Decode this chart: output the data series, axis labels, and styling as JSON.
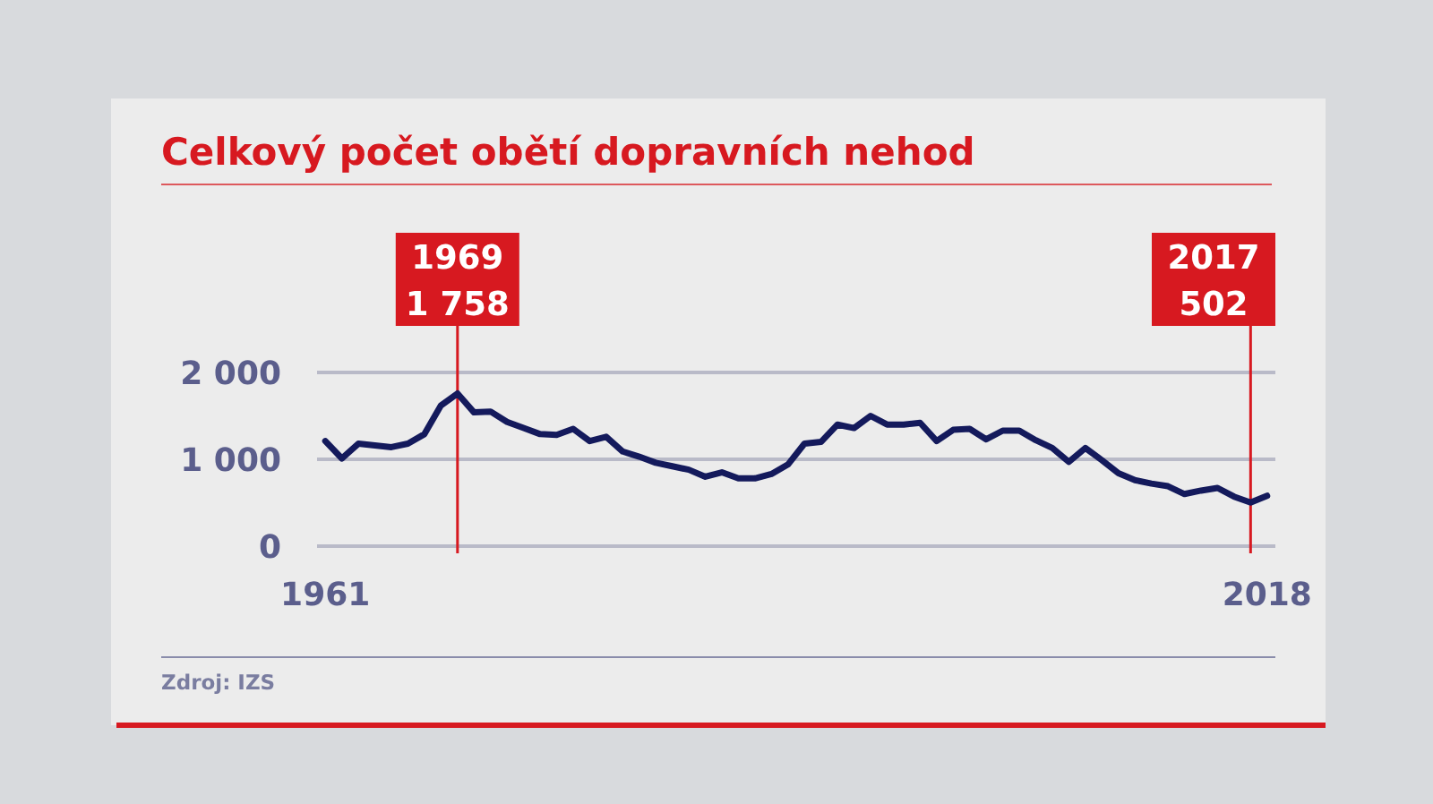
{
  "chart_data": {
    "type": "line",
    "title": "Celkový počet obětí dopravních nehod",
    "x": [
      1961,
      1962,
      1963,
      1964,
      1965,
      1966,
      1967,
      1968,
      1969,
      1970,
      1971,
      1972,
      1973,
      1974,
      1975,
      1976,
      1977,
      1978,
      1979,
      1980,
      1981,
      1982,
      1983,
      1984,
      1985,
      1986,
      1987,
      1988,
      1989,
      1990,
      1991,
      1992,
      1993,
      1994,
      1995,
      1996,
      1997,
      1998,
      1999,
      2000,
      2001,
      2002,
      2003,
      2004,
      2005,
      2006,
      2007,
      2008,
      2009,
      2010,
      2011,
      2012,
      2013,
      2014,
      2015,
      2016,
      2017,
      2018
    ],
    "values": [
      1210,
      1010,
      1180,
      1160,
      1140,
      1180,
      1290,
      1620,
      1758,
      1540,
      1550,
      1430,
      1360,
      1290,
      1280,
      1350,
      1210,
      1260,
      1090,
      1030,
      960,
      920,
      880,
      800,
      850,
      780,
      780,
      830,
      940,
      1180,
      1200,
      1400,
      1360,
      1500,
      1400,
      1400,
      1420,
      1210,
      1340,
      1350,
      1230,
      1330,
      1330,
      1220,
      1130,
      970,
      1130,
      990,
      840,
      760,
      720,
      690,
      600,
      640,
      670,
      570,
      502,
      580
    ],
    "color": "#141a5c",
    "xlim": [
      1960.5,
      2018.5
    ],
    "xticks": [
      1961,
      2018
    ],
    "ylim": [
      0,
      2000
    ],
    "yticks": [
      0,
      {
        "value": 1000,
        "label": "1 000"
      },
      {
        "value": 2000,
        "label": "2 000"
      }
    ],
    "grid": "y",
    "ref_lines": [
      {
        "axis": "x",
        "value": 1969,
        "label": "1969\n1 758",
        "color": "#d71920"
      },
      {
        "axis": "x",
        "value": 2017,
        "label": "2017\n502",
        "color": "#d71920"
      }
    ],
    "annotations": [
      "Zdroj: IZS"
    ]
  }
}
